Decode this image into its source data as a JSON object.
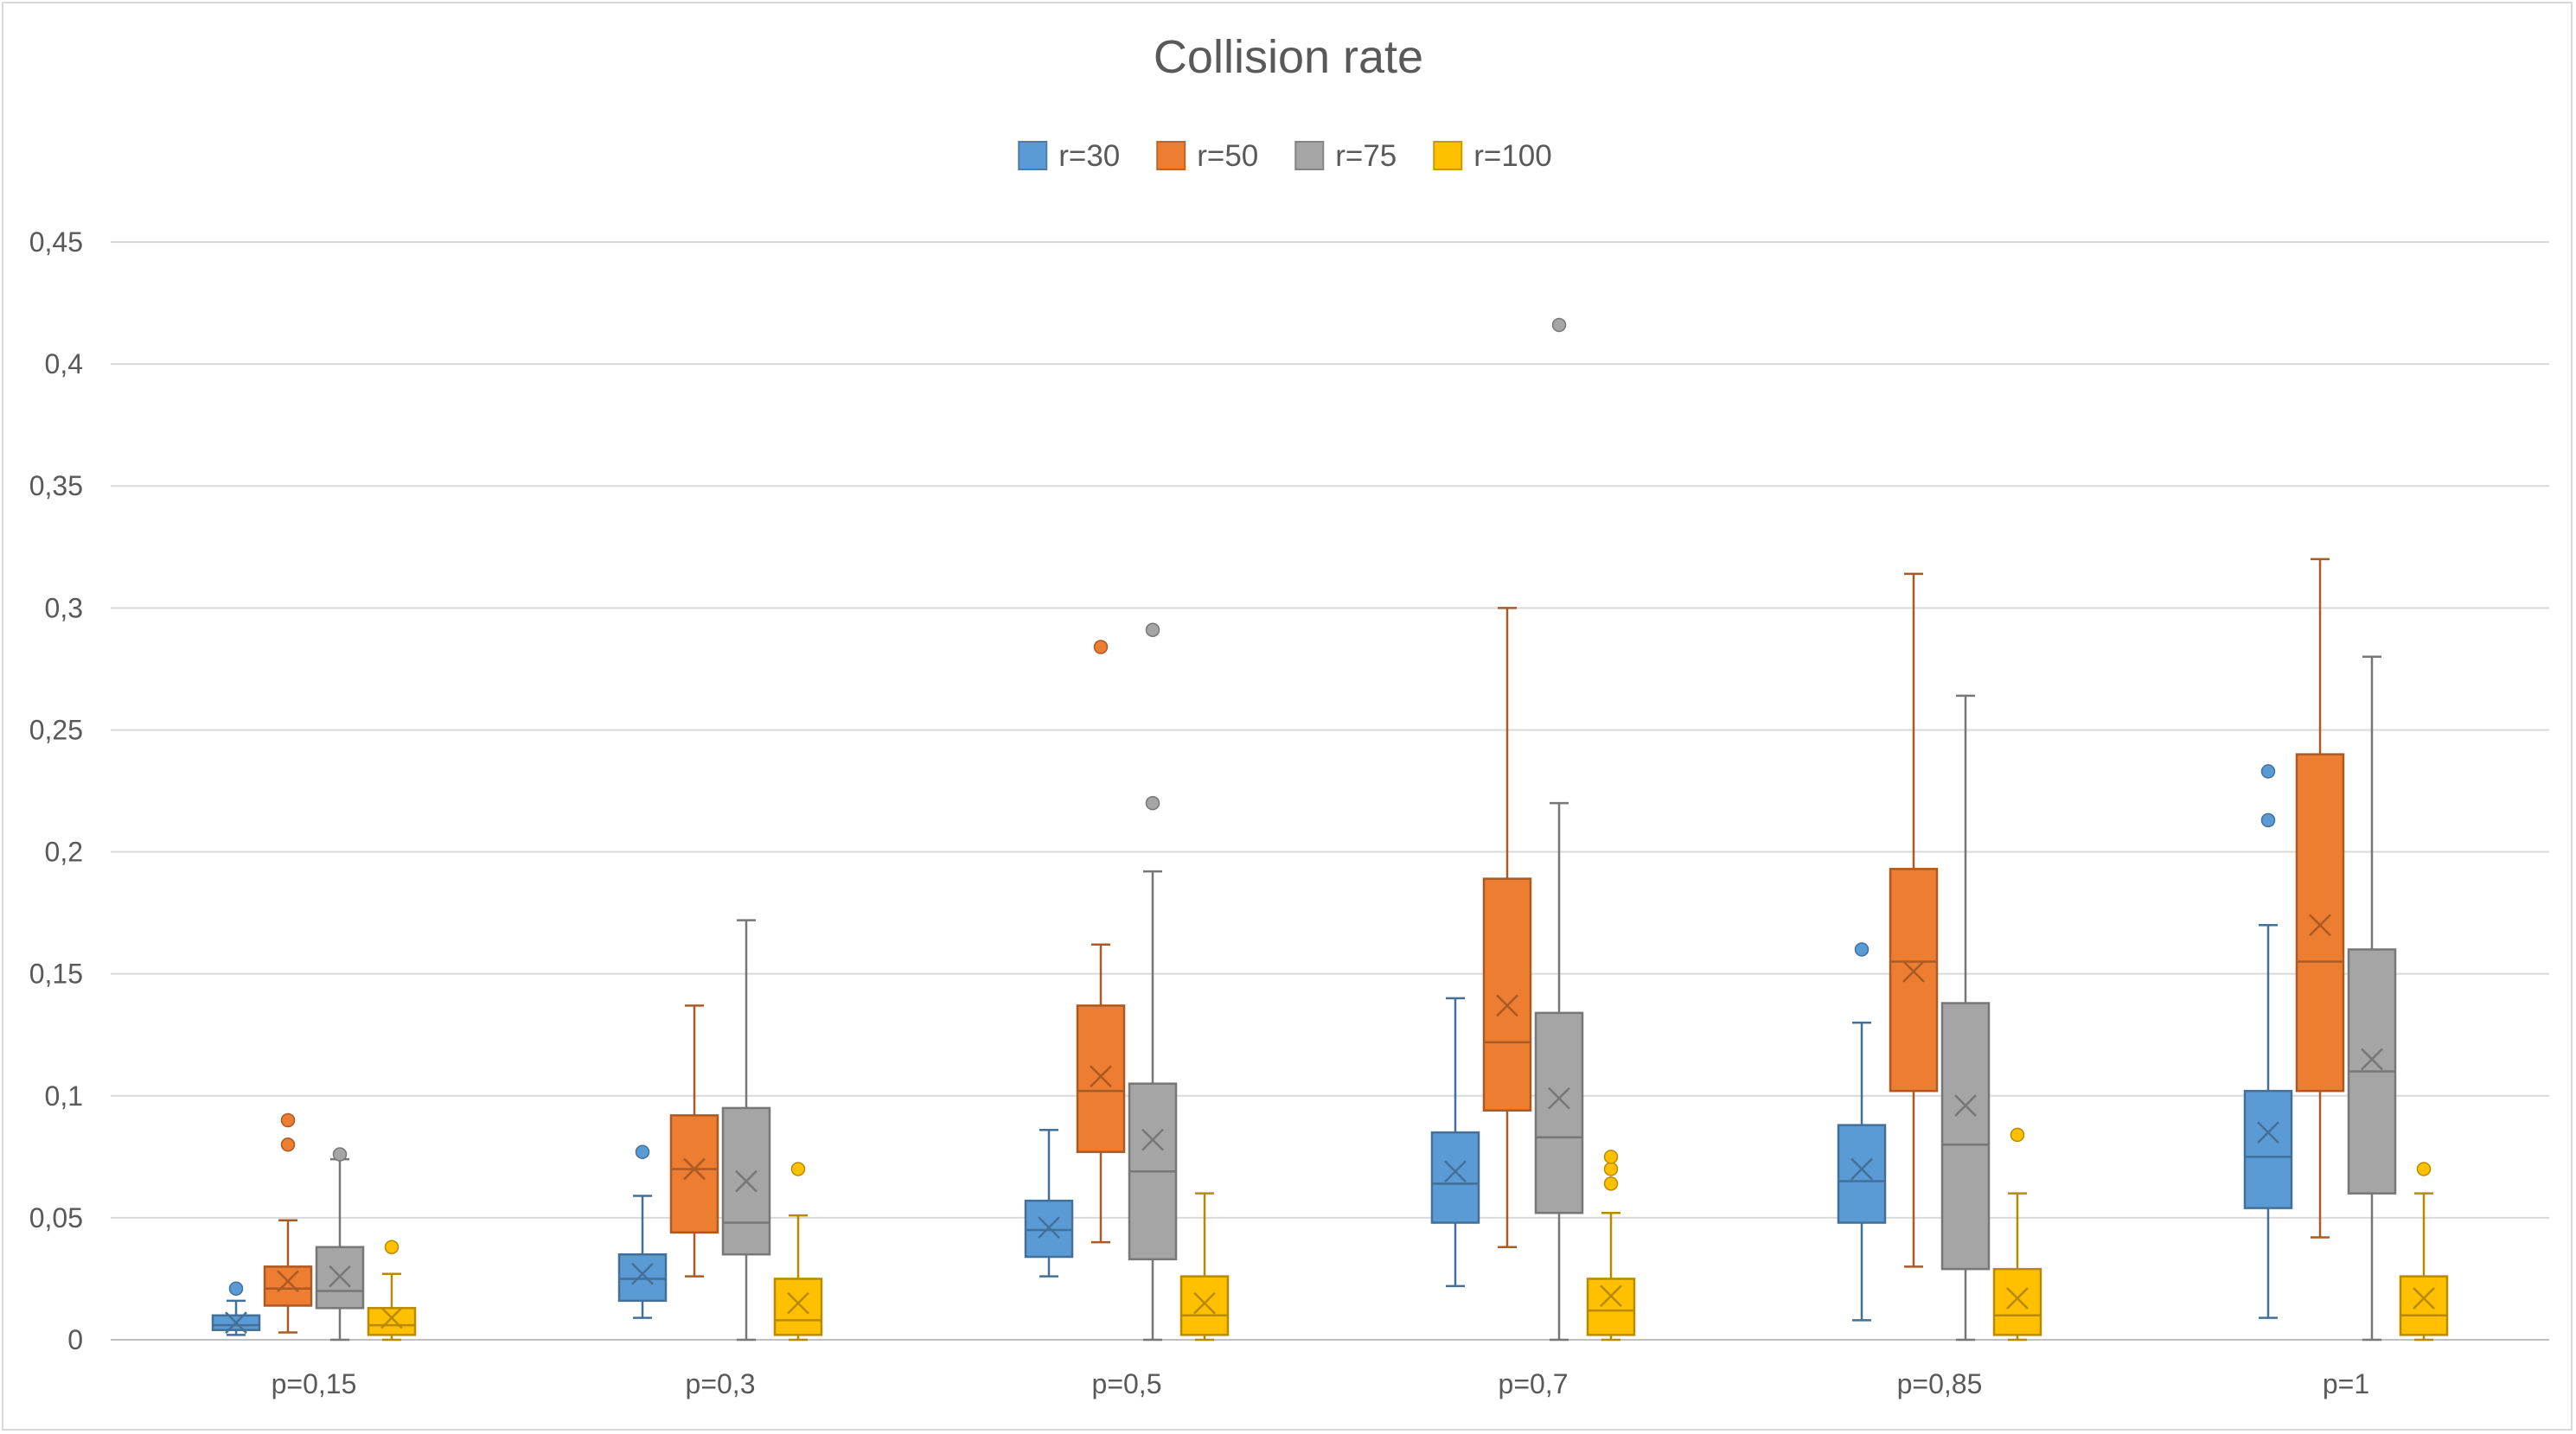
{
  "chart_data": {
    "type": "boxplot",
    "title": "Collision rate",
    "xlabel": "",
    "ylabel": "",
    "ylim": [
      0,
      0.45
    ],
    "y_ticks": [
      "0",
      "0,05",
      "0,1",
      "0,15",
      "0,2",
      "0,25",
      "0,3",
      "0,35",
      "0,4",
      "0,45"
    ],
    "grid": true,
    "legend_position": "top",
    "categories": [
      "p=0,15",
      "p=0,3",
      "p=0,5",
      "p=0,7",
      "p=0,85",
      "p=1"
    ],
    "series": [
      {
        "name": "r=30",
        "color": "#5b9bd5",
        "stats": [
          {
            "min": 0.002,
            "q1": 0.004,
            "median": 0.006,
            "q3": 0.01,
            "max": 0.016,
            "mean": 0.007,
            "outliers": [
              0.021
            ]
          },
          {
            "min": 0.009,
            "q1": 0.016,
            "median": 0.025,
            "q3": 0.035,
            "max": 0.059,
            "mean": 0.027,
            "outliers": [
              0.077
            ]
          },
          {
            "min": 0.026,
            "q1": 0.034,
            "median": 0.045,
            "q3": 0.057,
            "max": 0.086,
            "mean": 0.046,
            "outliers": []
          },
          {
            "min": 0.022,
            "q1": 0.048,
            "median": 0.064,
            "q3": 0.085,
            "max": 0.14,
            "mean": 0.069,
            "outliers": []
          },
          {
            "min": 0.008,
            "q1": 0.048,
            "median": 0.065,
            "q3": 0.088,
            "max": 0.13,
            "mean": 0.07,
            "outliers": [
              0.16
            ]
          },
          {
            "min": 0.009,
            "q1": 0.054,
            "median": 0.075,
            "q3": 0.102,
            "max": 0.17,
            "mean": 0.085,
            "outliers": [
              0.213,
              0.233
            ]
          }
        ]
      },
      {
        "name": "r=50",
        "color": "#ed7d31",
        "stats": [
          {
            "min": 0.003,
            "q1": 0.014,
            "median": 0.021,
            "q3": 0.03,
            "max": 0.049,
            "mean": 0.024,
            "outliers": [
              0.08,
              0.09
            ]
          },
          {
            "min": 0.026,
            "q1": 0.044,
            "median": 0.07,
            "q3": 0.092,
            "max": 0.137,
            "mean": 0.07,
            "outliers": []
          },
          {
            "min": 0.04,
            "q1": 0.077,
            "median": 0.102,
            "q3": 0.137,
            "max": 0.162,
            "mean": 0.108,
            "outliers": [
              0.284
            ]
          },
          {
            "min": 0.038,
            "q1": 0.094,
            "median": 0.122,
            "q3": 0.189,
            "max": 0.3,
            "mean": 0.137,
            "outliers": []
          },
          {
            "min": 0.03,
            "q1": 0.102,
            "median": 0.155,
            "q3": 0.193,
            "max": 0.314,
            "mean": 0.151,
            "outliers": []
          },
          {
            "min": 0.042,
            "q1": 0.102,
            "median": 0.155,
            "q3": 0.24,
            "max": 0.32,
            "mean": 0.17,
            "outliers": []
          }
        ]
      },
      {
        "name": "r=75",
        "color": "#a5a5a5",
        "stats": [
          {
            "min": 0.0,
            "q1": 0.013,
            "median": 0.02,
            "q3": 0.038,
            "max": 0.074,
            "mean": 0.026,
            "outliers": [
              0.076
            ]
          },
          {
            "min": 0.0,
            "q1": 0.035,
            "median": 0.048,
            "q3": 0.095,
            "max": 0.172,
            "mean": 0.065,
            "outliers": []
          },
          {
            "min": 0.0,
            "q1": 0.033,
            "median": 0.069,
            "q3": 0.105,
            "max": 0.192,
            "mean": 0.082,
            "outliers": [
              0.22,
              0.291
            ]
          },
          {
            "min": 0.0,
            "q1": 0.052,
            "median": 0.083,
            "q3": 0.134,
            "max": 0.22,
            "mean": 0.099,
            "outliers": [
              0.416
            ]
          },
          {
            "min": 0.0,
            "q1": 0.029,
            "median": 0.08,
            "q3": 0.138,
            "max": 0.264,
            "mean": 0.096,
            "outliers": []
          },
          {
            "min": 0.0,
            "q1": 0.06,
            "median": 0.11,
            "q3": 0.16,
            "max": 0.28,
            "mean": 0.115,
            "outliers": []
          }
        ]
      },
      {
        "name": "r=100",
        "color": "#ffc000",
        "stats": [
          {
            "min": 0.0,
            "q1": 0.002,
            "median": 0.006,
            "q3": 0.013,
            "max": 0.027,
            "mean": 0.009,
            "outliers": [
              0.038
            ]
          },
          {
            "min": 0.0,
            "q1": 0.002,
            "median": 0.008,
            "q3": 0.025,
            "max": 0.051,
            "mean": 0.015,
            "outliers": [
              0.07
            ]
          },
          {
            "min": 0.0,
            "q1": 0.002,
            "median": 0.01,
            "q3": 0.026,
            "max": 0.06,
            "mean": 0.015,
            "outliers": []
          },
          {
            "min": 0.0,
            "q1": 0.002,
            "median": 0.012,
            "q3": 0.025,
            "max": 0.052,
            "mean": 0.018,
            "outliers": [
              0.064,
              0.07,
              0.075
            ]
          },
          {
            "min": 0.0,
            "q1": 0.002,
            "median": 0.01,
            "q3": 0.029,
            "max": 0.06,
            "mean": 0.017,
            "outliers": [
              0.084
            ]
          },
          {
            "min": 0.0,
            "q1": 0.002,
            "median": 0.01,
            "q3": 0.026,
            "max": 0.06,
            "mean": 0.017,
            "outliers": [
              0.07
            ]
          }
        ]
      }
    ]
  }
}
